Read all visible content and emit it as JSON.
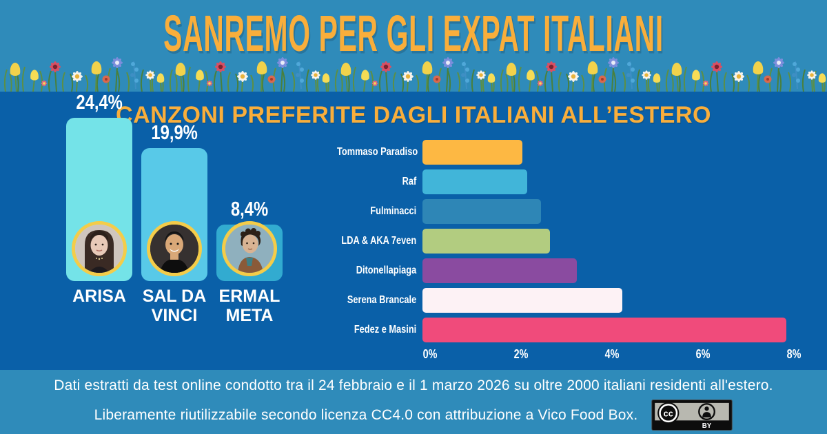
{
  "header": {
    "title": "SANREMO PER GLI EXPAT ITALIANI"
  },
  "main": {
    "subtitle": "CANZONI PREFERITE DAGLI ITALIANI ALL’ESTERO"
  },
  "chart_data": [
    {
      "type": "bar",
      "orientation": "vertical",
      "title": "",
      "categories": [
        "ARISA",
        "SAL DA VINCI",
        "ERMAL META"
      ],
      "values": [
        24.4,
        19.9,
        8.4
      ],
      "value_labels": [
        "24,4%",
        "19,9%",
        "8,4%"
      ],
      "unit": "%",
      "ylim": [
        0,
        26
      ],
      "bar_colors": [
        "#74E3E8",
        "#58C9E8",
        "#32ABD0"
      ],
      "grid": false,
      "legend": false,
      "notes": "each bar carries a circular artist photo with a yellow ring"
    },
    {
      "type": "bar",
      "orientation": "horizontal",
      "title": "",
      "categories": [
        "Tommaso Paradiso",
        "Raf",
        "Fulminacci",
        "LDA & AKA 7even",
        "Ditonellapiaga",
        "Serena Brancale",
        "Fedez e Masini"
      ],
      "values": [
        2.2,
        2.3,
        2.6,
        2.8,
        3.4,
        4.4,
        8.0
      ],
      "unit": "%",
      "xlim": [
        0,
        8
      ],
      "xtick_labels": [
        "0%",
        "2%",
        "4%",
        "6%",
        "8%"
      ],
      "bar_colors": [
        "#FDB843",
        "#41B5D9",
        "#2E86B6",
        "#B2CC80",
        "#8A4BA0",
        "#FDF2F5",
        "#F04B7B"
      ],
      "grid": false,
      "legend": false,
      "notes": "values estimated from axis gridlines"
    }
  ],
  "footer": {
    "line1": "Dati estratti da test online condotto tra il 24 febbraio e il 1 marzo 2026 su oltre 2000 italiani residenti all'estero.",
    "line2": "Liberamente riutilizzabile secondo licenza CC4.0 con attribuzione a Vico Food Box.",
    "badge": {
      "label": "CC BY",
      "cc_text": "cc",
      "by_text": "BY"
    }
  },
  "colors": {
    "header_bg": "#2F8BBA",
    "main_bg": "#0A60A8",
    "accent_orange": "#F9AE3B",
    "ring_yellow": "#F4CC49",
    "text_white": "#FFFFFF"
  }
}
